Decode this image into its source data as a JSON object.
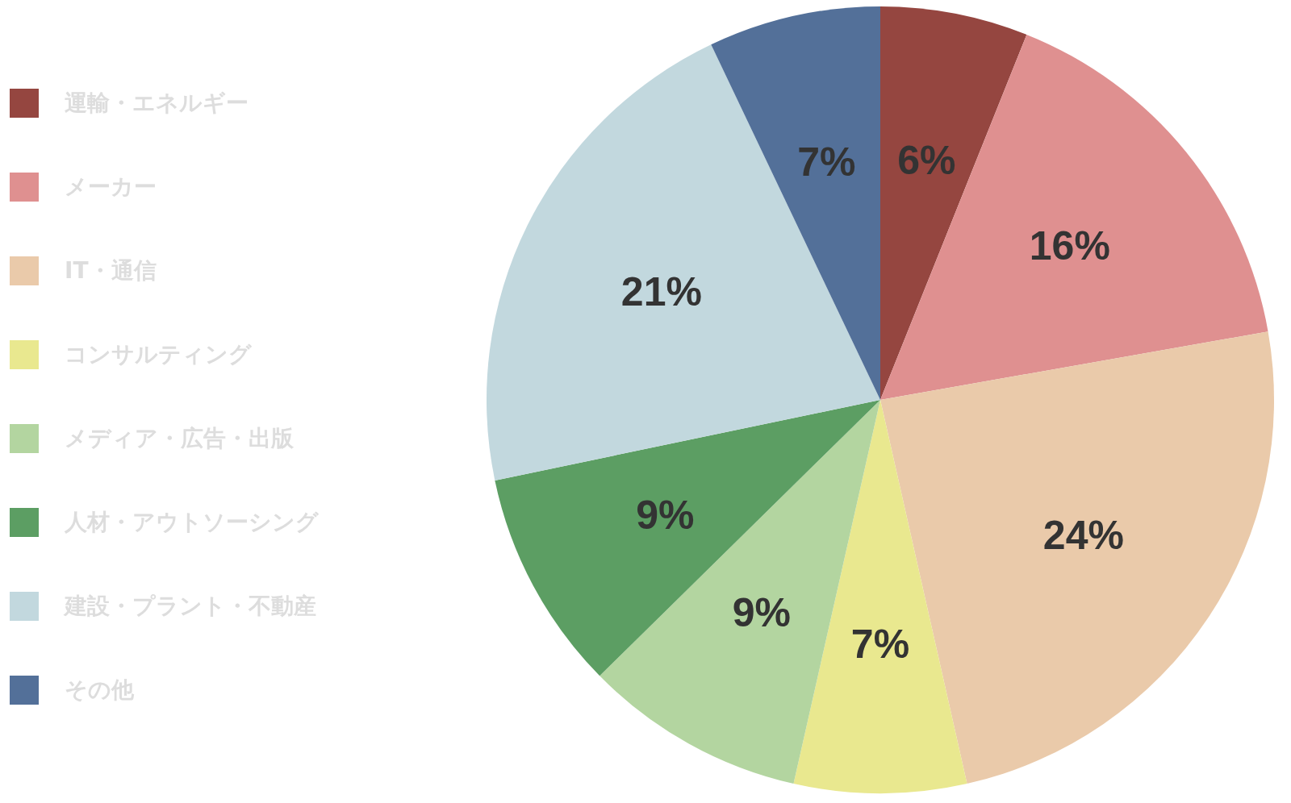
{
  "chart_data": {
    "type": "pie",
    "categories": [
      "運輸・エネルギー",
      "メーカー",
      "IT・通信",
      "コンサルティング",
      "メディア・広告・出版",
      "人材・アウトソーシング",
      "建設・プラント・不動産",
      "その他"
    ],
    "values": [
      6,
      16,
      24,
      7,
      9,
      9,
      21,
      7
    ],
    "colors": [
      "#954640",
      "#df9090",
      "#eacaaa",
      "#e9e88f",
      "#b3d5a0",
      "#5c9e63",
      "#c2d8de",
      "#537099"
    ],
    "value_labels": [
      "6%",
      "16%",
      "24%",
      "7%",
      "9%",
      "9%",
      "21%",
      "7%"
    ],
    "legend": "left"
  }
}
